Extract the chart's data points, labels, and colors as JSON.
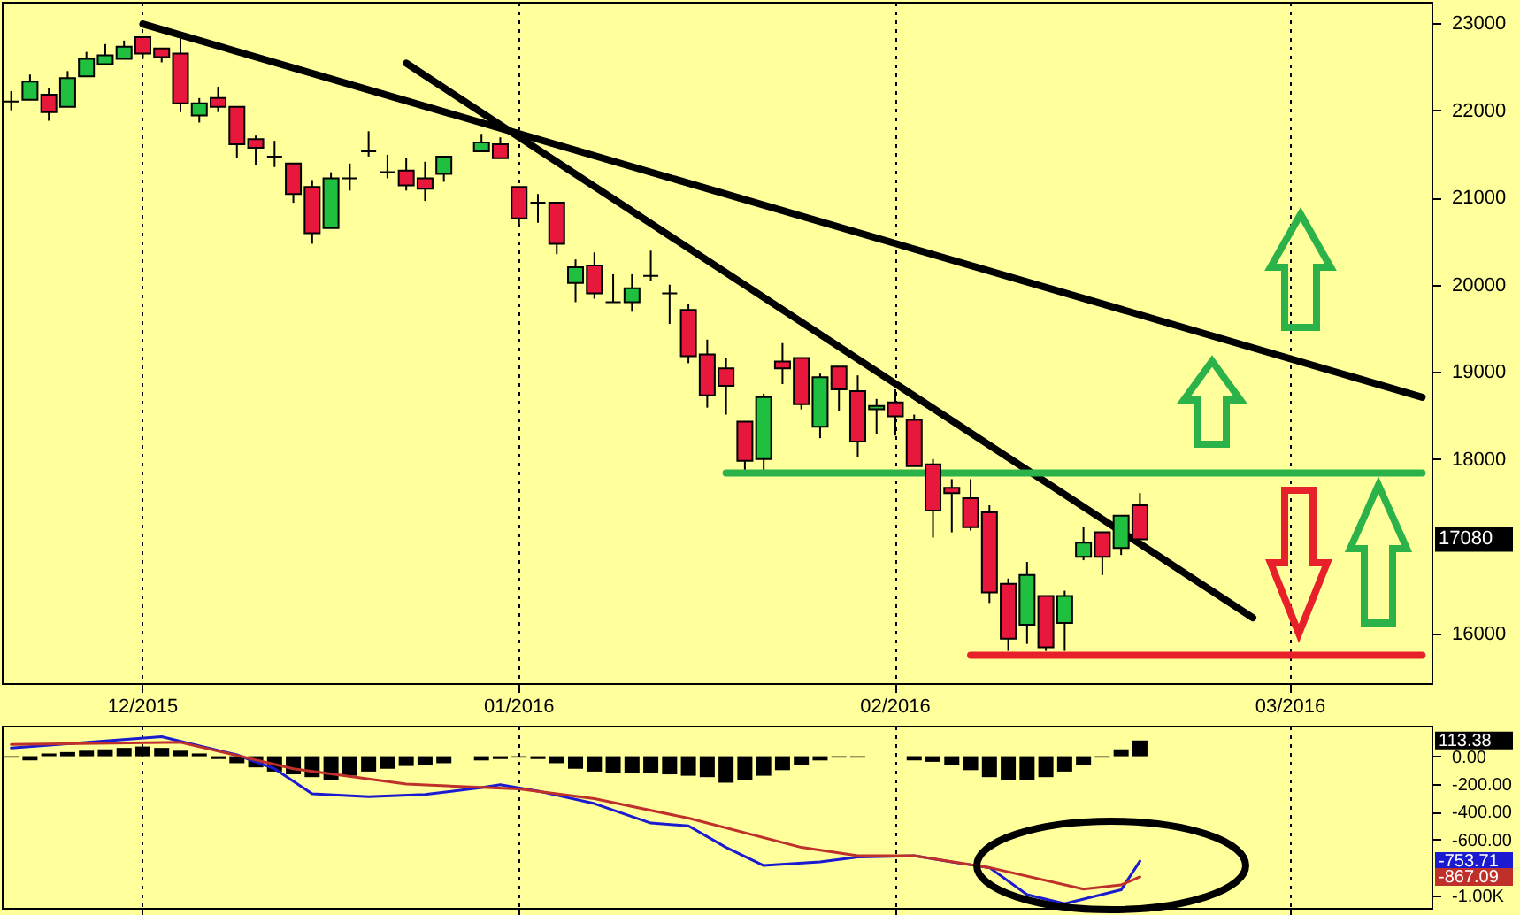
{
  "chart_data": [
    {
      "type": "candlestick",
      "categories": [
        null,
        null,
        null,
        null,
        null,
        null,
        null,
        "12/2015",
        null,
        null,
        null,
        null,
        null,
        null,
        null,
        null,
        null,
        null,
        null,
        null,
        null,
        null,
        null,
        null,
        null,
        null,
        null,
        "01/2016",
        null,
        null,
        null,
        null,
        null,
        null,
        null,
        null,
        null,
        null,
        null,
        null,
        null,
        null,
        null,
        null,
        null,
        null,
        null,
        "02/2016",
        null,
        null,
        null,
        null,
        null,
        null,
        null,
        null,
        null,
        null,
        null,
        null,
        null,
        null,
        null,
        null,
        null,
        null,
        null,
        null,
        "03/2016",
        null,
        null,
        null,
        null,
        null,
        null,
        null
      ],
      "ohlc": [
        [
          22100,
          22220,
          22000,
          22100
        ],
        [
          22120,
          22410,
          22120,
          22330
        ],
        [
          22180,
          22250,
          21880,
          21980
        ],
        [
          22040,
          22450,
          22040,
          22370
        ],
        [
          22390,
          22670,
          22390,
          22590
        ],
        [
          22530,
          22760,
          22530,
          22630
        ],
        [
          22590,
          22800,
          22590,
          22730
        ],
        [
          22840,
          22840,
          22590,
          22650
        ],
        [
          22710,
          22710,
          22550,
          22610
        ],
        [
          22650,
          22820,
          21980,
          22080
        ],
        [
          21940,
          22140,
          21860,
          22080
        ],
        [
          22140,
          22270,
          21980,
          22040
        ],
        [
          22040,
          22040,
          21450,
          21610
        ],
        [
          21670,
          21710,
          21370,
          21570
        ],
        [
          21470,
          21650,
          21350,
          21470
        ],
        [
          21390,
          21390,
          20940,
          21040
        ],
        [
          21120,
          21200,
          20470,
          20590
        ],
        [
          20650,
          21290,
          20650,
          21220
        ],
        [
          21220,
          21390,
          21080,
          21220
        ],
        [
          21530,
          21760,
          21470,
          21530
        ],
        [
          21290,
          21490,
          21220,
          21290
        ],
        [
          21310,
          21450,
          21080,
          21140
        ],
        [
          21220,
          21410,
          20960,
          21100
        ],
        [
          21270,
          21470,
          21180,
          21470
        ],
        null,
        [
          21530,
          21730,
          21530,
          21630
        ],
        [
          21610,
          21690,
          21450,
          21450
        ],
        [
          21120,
          21120,
          20670,
          20760
        ],
        [
          20940,
          21040,
          20710,
          20940
        ],
        [
          20940,
          20940,
          20350,
          20470
        ],
        [
          20020,
          20290,
          19800,
          20200
        ],
        [
          20220,
          20370,
          19840,
          19900
        ],
        [
          19800,
          20120,
          19800,
          19800
        ],
        [
          19800,
          20120,
          19690,
          19960
        ],
        [
          20100,
          20390,
          20040,
          20100
        ],
        [
          19900,
          20000,
          19550,
          19900
        ],
        [
          19710,
          19780,
          19100,
          19180
        ],
        [
          19200,
          19370,
          18590,
          18730
        ],
        [
          19040,
          19160,
          18510,
          18840
        ],
        [
          18430,
          18430,
          17880,
          17980
        ],
        [
          18000,
          18750,
          17880,
          18710
        ],
        [
          19120,
          19330,
          18860,
          19040
        ],
        [
          19160,
          19160,
          18570,
          18630
        ],
        [
          18370,
          18980,
          18240,
          18940
        ],
        [
          19060,
          19060,
          18550,
          18800
        ],
        [
          18780,
          18960,
          18020,
          18200
        ],
        [
          18570,
          18690,
          18290,
          18610
        ],
        [
          18650,
          18800,
          18270,
          18490
        ],
        [
          18450,
          18510,
          17920,
          17920
        ],
        [
          17940,
          18000,
          17100,
          17410
        ],
        [
          17670,
          17770,
          17160,
          17610
        ],
        [
          17550,
          17770,
          17180,
          17220
        ],
        [
          17390,
          17470,
          16350,
          16470
        ],
        [
          16570,
          16630,
          15800,
          15940
        ],
        [
          16100,
          16820,
          15880,
          16670
        ],
        [
          16430,
          16430,
          15800,
          15840
        ],
        [
          16120,
          16490,
          15800,
          16430
        ],
        [
          16880,
          17220,
          16840,
          17040
        ],
        [
          17160,
          17160,
          16670,
          16880
        ],
        [
          16980,
          17350,
          16900,
          17350
        ],
        [
          17470,
          17610,
          17080,
          17080
        ],
        null,
        null,
        null,
        null,
        null,
        null,
        null,
        null,
        null,
        null,
        null,
        null,
        null,
        null,
        null
      ],
      "colors": [
        "#000000",
        "#1fbf3f",
        "#e8173c",
        "#1fbf3f",
        "#1fbf3f",
        "#1fbf3f",
        "#1fbf3f",
        "#e8173c",
        "#e8173c",
        "#e8173c",
        "#1fbf3f",
        "#e8173c",
        "#e8173c",
        "#e8173c",
        "#000000",
        "#e8173c",
        "#e8173c",
        "#1fbf3f",
        "#000000",
        "#000000",
        "#000000",
        "#e8173c",
        "#e8173c",
        "#1fbf3f",
        null,
        "#1fbf3f",
        "#e8173c",
        "#e8173c",
        "#000000",
        "#e8173c",
        "#1fbf3f",
        "#e8173c",
        "#000000",
        "#1fbf3f",
        "#000000",
        "#000000",
        "#e8173c",
        "#e8173c",
        "#e8173c",
        "#e8173c",
        "#1fbf3f",
        "#e8173c",
        "#e8173c",
        "#1fbf3f",
        "#e8173c",
        "#e8173c",
        "#1fbf3f",
        "#e8173c",
        "#e8173c",
        "#e8173c",
        "#e8173c",
        "#e8173c",
        "#e8173c",
        "#e8173c",
        "#1fbf3f",
        "#e8173c",
        "#1fbf3f",
        "#1fbf3f",
        "#e8173c",
        "#1fbf3f",
        "#e8173c",
        null,
        null,
        null,
        null,
        null,
        null,
        null,
        null,
        null,
        null,
        null,
        null,
        null,
        null,
        null
      ],
      "series": [
        {
          "type": "line",
          "color": "#000000",
          "values": [
            null,
            null,
            null,
            null,
            null,
            null,
            null,
            22990,
            null,
            null,
            null,
            null,
            null,
            null,
            null,
            null,
            null,
            null,
            null,
            null,
            null,
            null,
            null,
            null,
            null,
            null,
            null,
            null,
            null,
            null,
            null,
            null,
            null,
            null,
            null,
            null,
            null,
            null,
            null,
            null,
            null,
            null,
            null,
            null,
            null,
            null,
            null,
            null,
            null,
            null,
            null,
            null,
            null,
            null,
            null,
            null,
            null,
            null,
            null,
            null,
            null,
            null,
            null,
            null,
            null,
            null,
            null,
            null,
            null,
            null,
            null,
            null,
            null,
            null,
            null,
            18710
          ]
        },
        {
          "type": "line",
          "color": "#000000",
          "values": [
            null,
            null,
            null,
            null,
            null,
            null,
            null,
            null,
            null,
            null,
            null,
            null,
            null,
            null,
            null,
            null,
            null,
            null,
            null,
            null,
            null,
            22540,
            null,
            null,
            null,
            null,
            null,
            null,
            null,
            null,
            null,
            null,
            null,
            null,
            null,
            null,
            null,
            null,
            null,
            null,
            null,
            null,
            null,
            null,
            null,
            null,
            null,
            null,
            null,
            null,
            null,
            null,
            null,
            null,
            null,
            null,
            null,
            null,
            null,
            null,
            null,
            null,
            null,
            null,
            null,
            null,
            16180,
            null,
            null,
            null,
            null,
            null,
            null,
            null,
            null,
            null
          ]
        },
        {
          "type": "line",
          "color": "#2bb34a",
          "values": [
            null,
            null,
            null,
            null,
            null,
            null,
            null,
            null,
            null,
            null,
            null,
            null,
            null,
            null,
            null,
            null,
            null,
            null,
            null,
            null,
            null,
            null,
            null,
            null,
            null,
            null,
            null,
            null,
            null,
            null,
            null,
            null,
            null,
            null,
            null,
            null,
            null,
            null,
            17840,
            null,
            null,
            null,
            null,
            null,
            null,
            null,
            null,
            null,
            null,
            null,
            null,
            null,
            null,
            null,
            null,
            null,
            null,
            null,
            null,
            null,
            null,
            null,
            null,
            null,
            null,
            null,
            null,
            null,
            null,
            null,
            null,
            null,
            null,
            null,
            null,
            17840
          ]
        },
        {
          "type": "line",
          "color": "#e8202a",
          "values": [
            null,
            null,
            null,
            null,
            null,
            null,
            null,
            null,
            null,
            null,
            null,
            null,
            null,
            null,
            null,
            null,
            null,
            null,
            null,
            null,
            null,
            null,
            null,
            null,
            null,
            null,
            null,
            null,
            null,
            null,
            null,
            null,
            null,
            null,
            null,
            null,
            null,
            null,
            null,
            null,
            null,
            null,
            null,
            null,
            null,
            null,
            null,
            null,
            null,
            null,
            null,
            15750,
            null,
            null,
            null,
            null,
            null,
            null,
            null,
            null,
            null,
            null,
            null,
            null,
            null,
            null,
            null,
            null,
            null,
            null,
            null,
            null,
            null,
            null,
            null,
            15750
          ]
        }
      ],
      "ylim": [
        15430,
        23245
      ],
      "yticks": [
        16000,
        18000,
        19000,
        20000,
        21000,
        22000,
        23000
      ],
      "grid": "x",
      "annotations": [
        "17080"
      ]
    },
    {
      "type": "bar",
      "categories": [
        null,
        null,
        null,
        null,
        null,
        null,
        null,
        null,
        null,
        null,
        null,
        null,
        null,
        null,
        null,
        null,
        null,
        null,
        null,
        null,
        null,
        null,
        null,
        null,
        null,
        null,
        null,
        null,
        null,
        null,
        null,
        null,
        null,
        null,
        null,
        null,
        null,
        null,
        null,
        null,
        null,
        null,
        null,
        null,
        null,
        null,
        null,
        null,
        null,
        null,
        null,
        null,
        null,
        null,
        null,
        null,
        null,
        null,
        null,
        null,
        null,
        null,
        null,
        null,
        null,
        null,
        null,
        null,
        null,
        null,
        null,
        null,
        null,
        null,
        null,
        null
      ],
      "series": [
        {
          "color": "#000000",
          "values": [
            -10,
            -30,
            20,
            30,
            40,
            50,
            60,
            70,
            60,
            40,
            20,
            -20,
            -50,
            -80,
            -110,
            -130,
            -150,
            -170,
            -140,
            -110,
            -90,
            -70,
            -60,
            -50,
            null,
            -30,
            -20,
            -10,
            -20,
            -50,
            -90,
            -110,
            -120,
            -120,
            -120,
            -130,
            -140,
            -150,
            -190,
            -170,
            -140,
            -100,
            -60,
            -30,
            -10,
            -10,
            0,
            0,
            -30,
            -40,
            -60,
            -100,
            -150,
            -170,
            -170,
            -150,
            -110,
            -60,
            -10,
            50,
            113.38,
            null,
            null,
            null,
            null,
            null,
            null,
            null,
            null,
            null,
            null,
            null,
            null,
            null,
            null,
            null
          ]
        },
        {
          "type": "line",
          "color": "#1a1ad0",
          "values": [
            60,
            null,
            null,
            null,
            null,
            null,
            null,
            null,
            140,
            null,
            null,
            null,
            10,
            null,
            -90,
            null,
            -270,
            null,
            null,
            -290,
            null,
            null,
            -275,
            null,
            null,
            -225,
            -205,
            null,
            -250,
            null,
            null,
            -340,
            null,
            null,
            -480,
            null,
            -500,
            null,
            -655,
            null,
            -785,
            null,
            null,
            -760,
            null,
            -725,
            null,
            null,
            -715,
            null,
            -760,
            null,
            -800,
            null,
            -995,
            null,
            -1060,
            null,
            null,
            -960,
            -753.71,
            null,
            null,
            null,
            null,
            null,
            null,
            null,
            null,
            null,
            null,
            null,
            null,
            null,
            null,
            null
          ]
        },
        {
          "type": "line",
          "color": "#c0302a",
          "values": [
            85,
            null,
            null,
            null,
            null,
            null,
            null,
            null,
            null,
            100,
            null,
            null,
            null,
            null,
            null,
            -90,
            null,
            null,
            null,
            null,
            null,
            -200,
            null,
            null,
            null,
            null,
            null,
            -235,
            null,
            null,
            null,
            -305,
            null,
            null,
            null,
            null,
            -445,
            null,
            null,
            null,
            null,
            null,
            -655,
            null,
            null,
            -715,
            null,
            null,
            -715,
            null,
            null,
            null,
            -800,
            null,
            null,
            null,
            null,
            -955,
            null,
            -925,
            -867.09,
            null,
            null,
            null,
            null,
            null,
            null,
            null,
            null,
            null,
            null,
            null,
            null,
            null,
            null,
            null
          ]
        }
      ],
      "ylim": [
        -1090,
        220
      ],
      "yticks": [
        {
          "value": 0,
          "label": "0.00"
        },
        {
          "value": -200,
          "label": "-200.00"
        },
        {
          "value": -400,
          "label": "-400.00"
        },
        {
          "value": -600,
          "label": "-600.00"
        },
        {
          "value": -1000,
          "label": "-1.00K"
        }
      ],
      "grid": "x",
      "tick_labels": "y",
      "annotations": [
        "113.38",
        "-753.71",
        "-867.09"
      ]
    }
  ]
}
